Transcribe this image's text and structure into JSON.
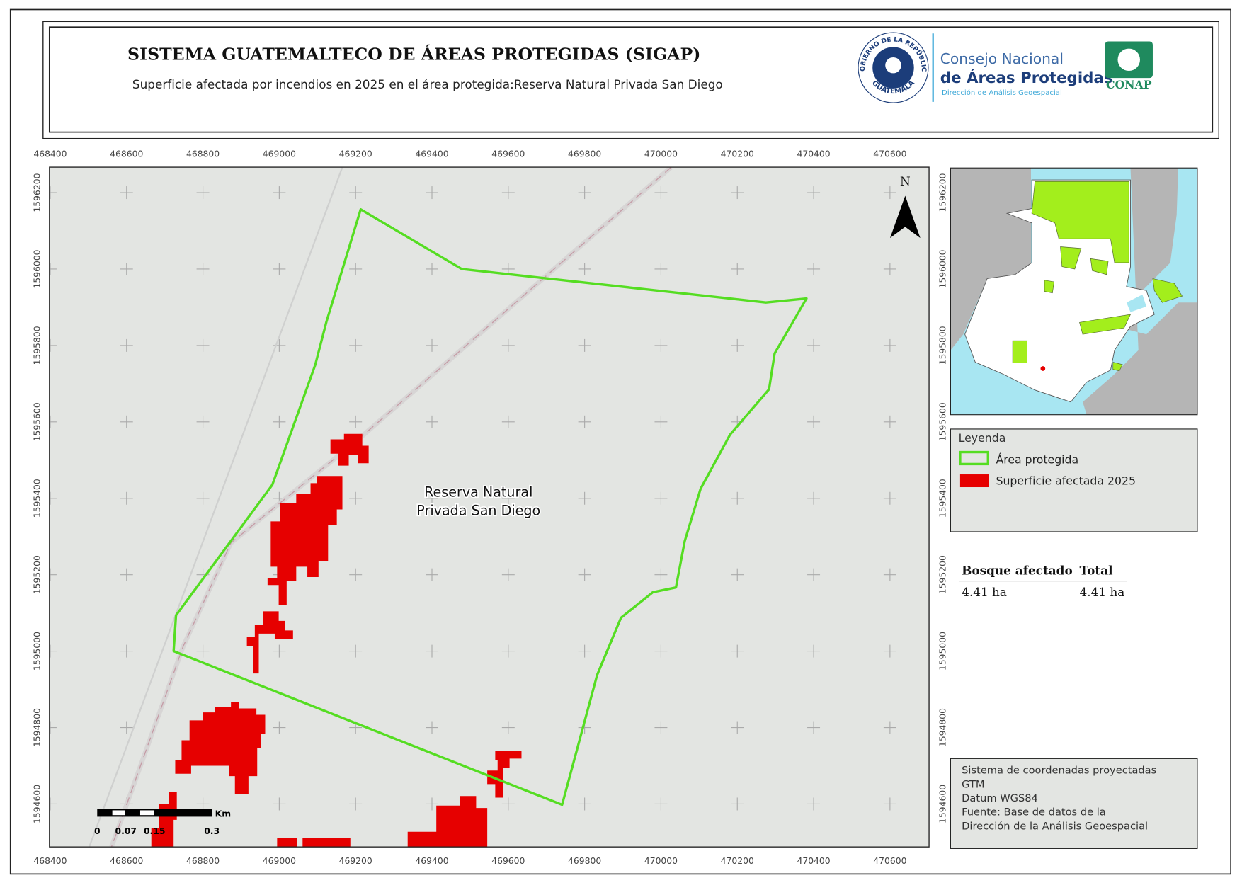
{
  "header": {
    "title": "SISTEMA GUATEMALTECO DE ÁREAS PROTEGIDAS  (SIGAP)",
    "subtitle": "Superficie afectada por incendios en 2025 en el área protegida:Reserva Natural Privada San Diego",
    "seal_top": "GOBIERNO DE LA REPÚBLICA",
    "seal_bottom": "GUATEMALA",
    "org_line1": "Consejo Nacional",
    "org_line2": "de Áreas Protegidas",
    "org_line3": "Dirección de Análisis Geoespacial",
    "logo_text": "CONAP"
  },
  "map": {
    "x_ticks": [
      468400,
      468600,
      468800,
      469000,
      469200,
      469400,
      469600,
      469800,
      470000,
      470200,
      470400,
      470600
    ],
    "y_ticks": [
      1594600,
      1594800,
      1595000,
      1595200,
      1595400,
      1595600,
      1595800,
      1596000,
      1596200
    ],
    "area_label": [
      "Reserva Natural",
      "Privada San Diego"
    ],
    "north": "N",
    "scale_labels": [
      "0",
      "0.07",
      "0.15",
      "0.3"
    ],
    "scale_unit": "Km"
  },
  "legend": {
    "title": "Leyenda",
    "items": [
      "Área protegida",
      "Superficie afectada 2025"
    ]
  },
  "table": {
    "headers": [
      "Bosque afectado",
      "Total"
    ],
    "rows": [
      [
        "4.41 ha",
        "4.41 ha"
      ]
    ]
  },
  "info": {
    "lines": [
      "Sistema de coordenadas proyectadas",
      "GTM",
      "Datum WGS84",
      "Fuente: Base de datos de la",
      "Dirección de la Análisis Geoespacial"
    ]
  }
}
